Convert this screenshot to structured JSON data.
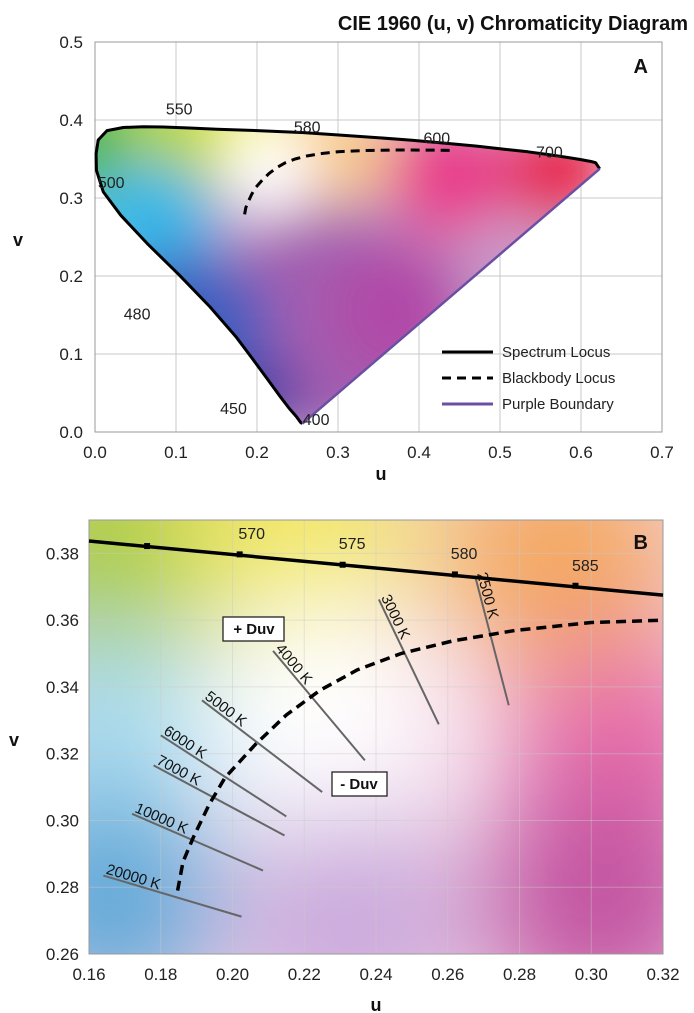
{
  "title": "CIE 1960 (u, v) Chromaticity Diagram",
  "colors": {
    "spectrum_locus": "#000000",
    "blackbody_locus": "#000000",
    "purple_boundary": "#6a4fa3",
    "isotemp_line": "#666666"
  },
  "chart_data": [
    {
      "type": "line",
      "panel_label": "A",
      "xlabel": "u",
      "ylabel": "v",
      "xlim": [
        0,
        0.7
      ],
      "ylim": [
        0,
        0.5
      ],
      "x_ticks": [
        "0.0",
        "0.1",
        "0.2",
        "0.3",
        "0.4",
        "0.5",
        "0.6",
        "0.7"
      ],
      "y_ticks": [
        "0.0",
        "0.1",
        "0.2",
        "0.3",
        "0.4",
        "0.5"
      ],
      "grid": true,
      "legend_position": "bottom-right",
      "series": [
        {
          "name": "Spectrum Locus",
          "style": "solid",
          "x": [
            0.2559,
            0.2537,
            0.2486,
            0.2398,
            0.2284,
            0.2136,
            0.1955,
            0.1744,
            0.1421,
            0.1034,
            0.0643,
            0.0318,
            0.0103,
            0.0017,
            0.0013,
            0.0039,
            0.0148,
            0.0348,
            0.0598,
            0.084,
            0.1165,
            0.1508,
            0.2039,
            0.2576,
            0.3031,
            0.3476,
            0.3914,
            0.4328,
            0.4711,
            0.5053,
            0.5345,
            0.5601,
            0.5808,
            0.5983,
            0.6123,
            0.618,
            0.6231
          ],
          "y": [
            0.0106,
            0.0125,
            0.0198,
            0.0303,
            0.0458,
            0.0668,
            0.0923,
            0.1216,
            0.1603,
            0.2018,
            0.2418,
            0.2778,
            0.3078,
            0.3356,
            0.3567,
            0.3744,
            0.3864,
            0.3904,
            0.3914,
            0.391,
            0.3898,
            0.3882,
            0.3863,
            0.3839,
            0.3807,
            0.3775,
            0.374,
            0.3703,
            0.3665,
            0.3626,
            0.3592,
            0.3557,
            0.3525,
            0.3495,
            0.3468,
            0.3452,
            0.3375
          ]
        },
        {
          "name": "Blackbody Locus",
          "style": "dashed",
          "x": [
            0.1847,
            0.1862,
            0.1891,
            0.1935,
            0.1979,
            0.2064,
            0.215,
            0.2244,
            0.2348,
            0.247,
            0.2614,
            0.2787,
            0.3,
            0.33,
            0.37,
            0.41,
            0.445
          ],
          "y": [
            0.279,
            0.2876,
            0.295,
            0.3048,
            0.3128,
            0.3228,
            0.3316,
            0.339,
            0.3451,
            0.35,
            0.3538,
            0.3569,
            0.3593,
            0.3608,
            0.3615,
            0.3614,
            0.361
          ]
        },
        {
          "name": "Purple Boundary",
          "style": "solid",
          "x": [
            0.2559,
            0.6231
          ],
          "y": [
            0.0106,
            0.3375
          ]
        }
      ],
      "annotations": [
        {
          "text": "550",
          "u": 0.104,
          "v": 0.407
        },
        {
          "text": "580",
          "u": 0.262,
          "v": 0.384
        },
        {
          "text": "600",
          "u": 0.422,
          "v": 0.37
        },
        {
          "text": "700",
          "u": 0.561,
          "v": 0.352
        },
        {
          "text": "500",
          "u": 0.02,
          "v": 0.313
        },
        {
          "text": "480",
          "u": 0.052,
          "v": 0.144
        },
        {
          "text": "450",
          "u": 0.171,
          "v": 0.023
        },
        {
          "text": "400",
          "u": 0.273,
          "v": 0.009
        }
      ]
    },
    {
      "type": "line",
      "panel_label": "B",
      "xlabel": "u",
      "ylabel": "v",
      "xlim": [
        0.16,
        0.32
      ],
      "ylim": [
        0.26,
        0.39
      ],
      "x_ticks": [
        "0.16",
        "0.18",
        "0.20",
        "0.22",
        "0.24",
        "0.26",
        "0.28",
        "0.30",
        "0.32"
      ],
      "y_ticks": [
        "0.26",
        "0.28",
        "0.30",
        "0.32",
        "0.34",
        "0.36",
        "0.38"
      ],
      "grid": true,
      "spectrum_locus": {
        "x": [
          0.16,
          0.32
        ],
        "y": [
          0.3837,
          0.3675
        ]
      },
      "spectrum_markers": [
        {
          "u": 0.1762,
          "v": 0.3822
        },
        {
          "u": 0.202,
          "v": 0.3797
        },
        {
          "u": 0.2307,
          "v": 0.3766
        },
        {
          "u": 0.262,
          "v": 0.3737
        },
        {
          "u": 0.2956,
          "v": 0.3703
        }
      ],
      "wavelength_labels": [
        {
          "text": "570",
          "u": 0.202,
          "v": 0.3843
        },
        {
          "text": "575",
          "u": 0.23,
          "v": 0.3813
        },
        {
          "text": "580",
          "u": 0.2612,
          "v": 0.3783
        },
        {
          "text": "585",
          "u": 0.295,
          "v": 0.3747
        }
      ],
      "blackbody_locus": {
        "x": [
          0.1847,
          0.1862,
          0.1891,
          0.1935,
          0.1979,
          0.2064,
          0.215,
          0.2244,
          0.2348,
          0.247,
          0.2614,
          0.2787,
          0.3,
          0.32
        ],
        "y": [
          0.279,
          0.2876,
          0.295,
          0.3048,
          0.3128,
          0.3228,
          0.3316,
          0.339,
          0.3451,
          0.35,
          0.3538,
          0.3569,
          0.3593,
          0.36
        ]
      },
      "isotemperature_lines": [
        {
          "label": "20000 K",
          "u1": 0.164,
          "v1": 0.2835,
          "u2": 0.2025,
          "v2": 0.2712
        },
        {
          "label": "10000 K",
          "u1": 0.172,
          "v1": 0.302,
          "u2": 0.2085,
          "v2": 0.285
        },
        {
          "label": "7000 K",
          "u1": 0.178,
          "v1": 0.3165,
          "u2": 0.2145,
          "v2": 0.2955
        },
        {
          "label": "6000 K",
          "u1": 0.18,
          "v1": 0.3255,
          "u2": 0.215,
          "v2": 0.3012
        },
        {
          "label": "5000 K",
          "u1": 0.1915,
          "v1": 0.336,
          "u2": 0.225,
          "v2": 0.3085
        },
        {
          "label": "4000 K",
          "u1": 0.2113,
          "v1": 0.3508,
          "u2": 0.2369,
          "v2": 0.318
        },
        {
          "label": "3000 K",
          "u1": 0.2408,
          "v1": 0.3662,
          "u2": 0.2575,
          "v2": 0.3288
        },
        {
          "label": "2500 K",
          "u1": 0.2676,
          "v1": 0.3733,
          "u2": 0.277,
          "v2": 0.3345
        }
      ],
      "boxed_labels": [
        {
          "text": "+ Duv",
          "u": 0.2075,
          "v": 0.3529
        },
        {
          "text": "- Duv",
          "u": 0.2412,
          "v": 0.3146
        }
      ]
    }
  ],
  "legend": [
    {
      "label": "Spectrum Locus",
      "style": "solid"
    },
    {
      "label": "Blackbody Locus",
      "style": "dashed"
    },
    {
      "label": "Purple Boundary",
      "style": "purple"
    }
  ]
}
